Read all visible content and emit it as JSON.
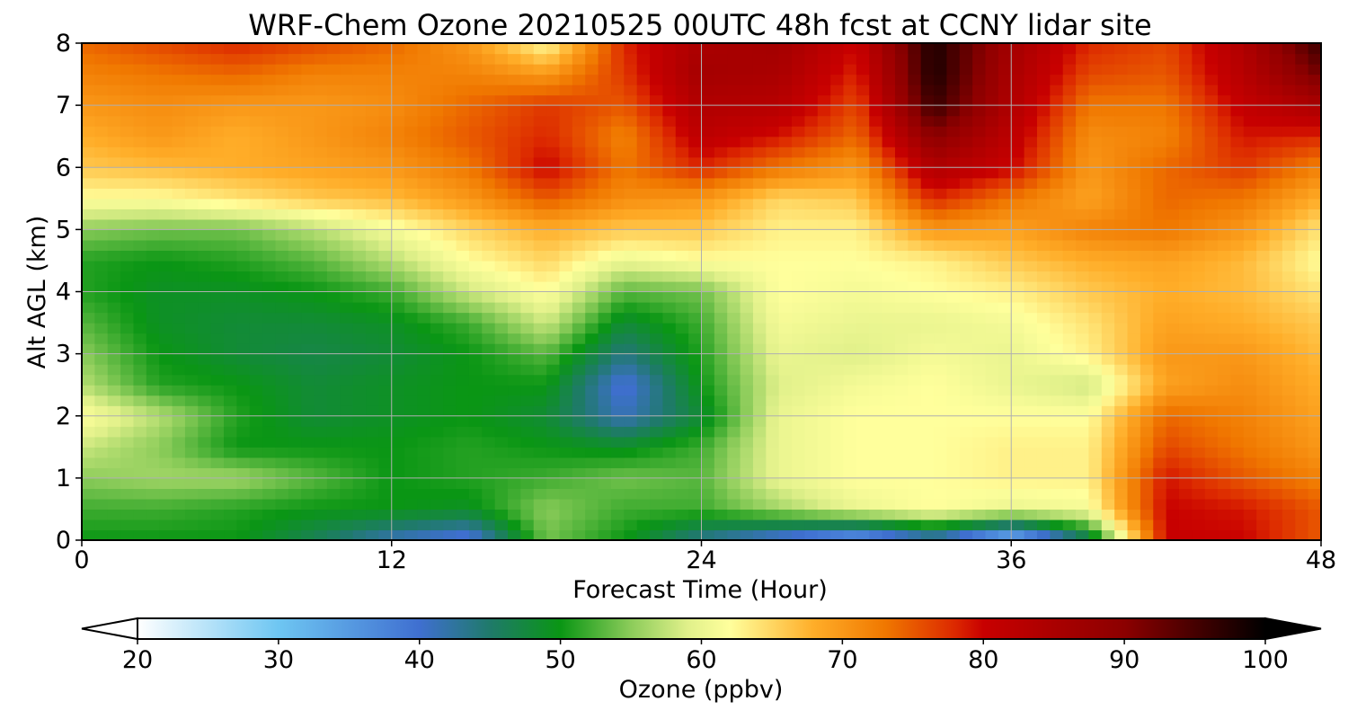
{
  "chart_data": {
    "type": "heatmap",
    "title": "WRF-Chem Ozone  20210525 00UTC 48h fcst at CCNY lidar site",
    "xlabel": "Forecast Time (Hour)",
    "ylabel": "Alt AGL (km)",
    "xlim": [
      0,
      48
    ],
    "ylim": [
      0,
      8
    ],
    "xticks": [
      0,
      12,
      24,
      36,
      48
    ],
    "yticks": [
      0,
      1,
      2,
      3,
      4,
      5,
      6,
      7,
      8
    ],
    "grid": true,
    "colorbar": {
      "label": "Ozone  (ppbv)",
      "orientation": "horizontal",
      "placement": "bottom",
      "min": 20,
      "max": 100,
      "ticks": [
        20,
        30,
        40,
        50,
        60,
        70,
        80,
        90,
        100
      ],
      "extend": "both",
      "colors": [
        {
          "value": 20,
          "color": "#ffffff"
        },
        {
          "value": 30,
          "color": "#6ec6f2"
        },
        {
          "value": 40,
          "color": "#3f6fd0"
        },
        {
          "value": 45,
          "color": "#1f7a6a"
        },
        {
          "value": 50,
          "color": "#0a9614"
        },
        {
          "value": 55,
          "color": "#8ccc5a"
        },
        {
          "value": 59,
          "color": "#e0f08a"
        },
        {
          "value": 62,
          "color": "#ffff9c"
        },
        {
          "value": 68,
          "color": "#ffad28"
        },
        {
          "value": 73,
          "color": "#f07800"
        },
        {
          "value": 78,
          "color": "#dc2800"
        },
        {
          "value": 80,
          "color": "#c80000"
        },
        {
          "value": 90,
          "color": "#8c0000"
        },
        {
          "value": 100,
          "color": "#000000"
        }
      ]
    },
    "x": [
      0,
      3,
      6,
      9,
      12,
      15,
      18,
      21,
      24,
      27,
      30,
      33,
      36,
      39,
      42,
      45,
      48
    ],
    "y": [
      0,
      0.5,
      1,
      1.5,
      2,
      2.5,
      3,
      3.5,
      4,
      4.5,
      5,
      5.5,
      6,
      6.5,
      7,
      7.5,
      8
    ],
    "z": [
      [
        50,
        50,
        50,
        46,
        41,
        38,
        54,
        50,
        43,
        38,
        33,
        40,
        30,
        45,
        80,
        80,
        75
      ],
      [
        52,
        52,
        51,
        50,
        50,
        49,
        55,
        52,
        52,
        56,
        60,
        62,
        60,
        61,
        80,
        79,
        75
      ],
      [
        55,
        56,
        56,
        53,
        50,
        51,
        52,
        54,
        53,
        60,
        62,
        62,
        63,
        63,
        79,
        75,
        72
      ],
      [
        58,
        55,
        50,
        50,
        50,
        51,
        50,
        49,
        52,
        60,
        62,
        62,
        63,
        63,
        76,
        73,
        70
      ],
      [
        62,
        57,
        51,
        48,
        49,
        50,
        48,
        41,
        48,
        60,
        62,
        62,
        62,
        62,
        74,
        72,
        69
      ],
      [
        57,
        51,
        50,
        48,
        49,
        50,
        50,
        39,
        50,
        59,
        61,
        62,
        60,
        58,
        69,
        71,
        68
      ],
      [
        55,
        50,
        48,
        47,
        48,
        50,
        53,
        44,
        51,
        60,
        59,
        61,
        60,
        63,
        70,
        70,
        67
      ],
      [
        53,
        49,
        48,
        48,
        49,
        52,
        58,
        48,
        52,
        61,
        60,
        60,
        61,
        64,
        69,
        68,
        66
      ],
      [
        51,
        49,
        49,
        50,
        52,
        58,
        62,
        53,
        54,
        62,
        61,
        62,
        63,
        66,
        68,
        67,
        64
      ],
      [
        51,
        50,
        51,
        53,
        57,
        62,
        65,
        60,
        62,
        62,
        62,
        63,
        66,
        68,
        69,
        67,
        62
      ],
      [
        55,
        54,
        54,
        57,
        61,
        65,
        68,
        66,
        66,
        63,
        63,
        70,
        69,
        72,
        73,
        70,
        64
      ],
      [
        62,
        62,
        64,
        66,
        67,
        70,
        75,
        71,
        70,
        65,
        66,
        78,
        73,
        69,
        74,
        73,
        68
      ],
      [
        66,
        67,
        68,
        69,
        70,
        73,
        80,
        73,
        78,
        73,
        70,
        84,
        80,
        70,
        74,
        77,
        72
      ],
      [
        68,
        70,
        68,
        70,
        72,
        75,
        78,
        72,
        82,
        79,
        74,
        90,
        82,
        71,
        72,
        79,
        78
      ],
      [
        70,
        71,
        70,
        70,
        71,
        74,
        77,
        75,
        84,
        83,
        76,
        96,
        84,
        73,
        73,
        81,
        85
      ],
      [
        72,
        73,
        74,
        72,
        72,
        72,
        70,
        77,
        86,
        85,
        78,
        98,
        85,
        76,
        75,
        83,
        92
      ],
      [
        74,
        76,
        78,
        76,
        74,
        70,
        62,
        78,
        85,
        86,
        80,
        98,
        86,
        78,
        76,
        84,
        96
      ]
    ]
  }
}
